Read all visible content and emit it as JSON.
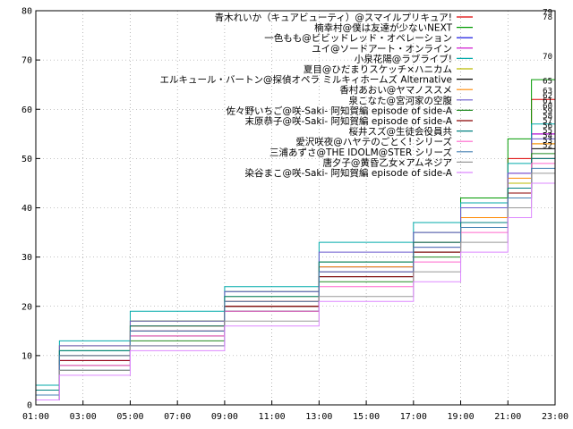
{
  "chart_data": {
    "type": "line",
    "xlim": [
      "01:00",
      "23:00"
    ],
    "ylim": [
      0,
      80
    ],
    "x_ticks": [
      "01:00",
      "03:00",
      "05:00",
      "07:00",
      "09:00",
      "11:00",
      "13:00",
      "15:00",
      "17:00",
      "19:00",
      "21:00",
      "23:00"
    ],
    "y_ticks": [
      "0",
      "10",
      "20",
      "30",
      "40",
      "50",
      "60",
      "70",
      "80"
    ],
    "grid": true,
    "legend_position": "top-right",
    "series": [
      {
        "name": "青木れいか（キュアビューティ）@スマイルプリキュア!",
        "color": "#dd0000",
        "points": [
          [
            "01:00",
            2
          ],
          [
            "02:00",
            10
          ],
          [
            "05:00",
            16
          ],
          [
            "09:00",
            20
          ],
          [
            "13:00",
            27
          ],
          [
            "17:00",
            33
          ],
          [
            "19:00",
            40
          ],
          [
            "21:00",
            50
          ],
          [
            "22:00",
            62
          ],
          [
            "23:00",
            79
          ]
        ]
      },
      {
        "name": "楠幸村@僕は友達が少ないNEXT",
        "color": "#009900",
        "points": [
          [
            "01:00",
            3
          ],
          [
            "02:00",
            11
          ],
          [
            "05:00",
            17
          ],
          [
            "09:00",
            23
          ],
          [
            "13:00",
            29
          ],
          [
            "17:00",
            35
          ],
          [
            "19:00",
            42
          ],
          [
            "21:00",
            54
          ],
          [
            "22:00",
            66
          ],
          [
            "23:00",
            78
          ]
        ]
      },
      {
        "name": "一色もも@ビビッドレッド・オペレーション",
        "color": "#0000dd",
        "points": [
          [
            "01:00",
            1
          ],
          [
            "02:00",
            7
          ],
          [
            "05:00",
            12
          ],
          [
            "09:00",
            19
          ],
          [
            "13:00",
            28
          ],
          [
            "17:00",
            33
          ],
          [
            "19:00",
            38
          ],
          [
            "21:00",
            44
          ],
          [
            "22:00",
            55
          ],
          [
            "23:00",
            70
          ]
        ]
      },
      {
        "name": "ユイ@ソードアート・オンライン",
        "color": "#cc00cc",
        "points": [
          [
            "01:00",
            2
          ],
          [
            "02:00",
            9
          ],
          [
            "05:00",
            15
          ],
          [
            "09:00",
            21
          ],
          [
            "13:00",
            27
          ],
          [
            "17:00",
            32
          ],
          [
            "19:00",
            37
          ],
          [
            "21:00",
            47
          ],
          [
            "22:00",
            55
          ],
          [
            "23:00",
            65
          ]
        ]
      },
      {
        "name": "小泉花陽@ラブライブ!",
        "color": "#00aaaa",
        "points": [
          [
            "01:00",
            4
          ],
          [
            "02:00",
            13
          ],
          [
            "05:00",
            19
          ],
          [
            "09:00",
            24
          ],
          [
            "13:00",
            33
          ],
          [
            "17:00",
            37
          ],
          [
            "19:00",
            41
          ],
          [
            "21:00",
            49
          ],
          [
            "22:00",
            57
          ],
          [
            "23:00",
            63
          ]
        ]
      },
      {
        "name": "夏目@ひだまりスケッチ×ハニカム",
        "color": "#bbbb00",
        "points": [
          [
            "01:00",
            3
          ],
          [
            "02:00",
            12
          ],
          [
            "05:00",
            17
          ],
          [
            "09:00",
            22
          ],
          [
            "13:00",
            29
          ],
          [
            "17:00",
            33
          ],
          [
            "19:00",
            37
          ],
          [
            "21:00",
            45
          ],
          [
            "22:00",
            53
          ],
          [
            "23:00",
            62
          ]
        ]
      },
      {
        "name": "エルキュール・バートン@探偵オペラ ミルキィホームズ Alternative",
        "color": "#000000",
        "points": [
          [
            "01:00",
            1
          ],
          [
            "02:00",
            8
          ],
          [
            "05:00",
            14
          ],
          [
            "09:00",
            20
          ],
          [
            "13:00",
            26
          ],
          [
            "17:00",
            31
          ],
          [
            "19:00",
            36
          ],
          [
            "21:00",
            44
          ],
          [
            "22:00",
            52
          ],
          [
            "23:00",
            61
          ]
        ]
      },
      {
        "name": "香村あおい@ヤマノススメ",
        "color": "#ff8800",
        "points": [
          [
            "01:00",
            2
          ],
          [
            "02:00",
            10
          ],
          [
            "05:00",
            16
          ],
          [
            "09:00",
            21
          ],
          [
            "13:00",
            28
          ],
          [
            "17:00",
            33
          ],
          [
            "19:00",
            38
          ],
          [
            "21:00",
            46
          ],
          [
            "22:00",
            53
          ],
          [
            "23:00",
            60
          ]
        ]
      },
      {
        "name": "泉こなた@宮河家の空腹",
        "color": "#6a5acd",
        "points": [
          [
            "01:00",
            3
          ],
          [
            "02:00",
            12
          ],
          [
            "05:00",
            17
          ],
          [
            "09:00",
            23
          ],
          [
            "13:00",
            31
          ],
          [
            "17:00",
            35
          ],
          [
            "19:00",
            40
          ],
          [
            "21:00",
            47
          ],
          [
            "22:00",
            54
          ],
          [
            "23:00",
            59
          ]
        ]
      },
      {
        "name": "佐々野いちご@咲-Saki- 阿知賀編 episode of side-A",
        "color": "#228b22",
        "points": [
          [
            "01:00",
            1
          ],
          [
            "02:00",
            7
          ],
          [
            "05:00",
            13
          ],
          [
            "09:00",
            19
          ],
          [
            "13:00",
            25
          ],
          [
            "17:00",
            30
          ],
          [
            "19:00",
            36
          ],
          [
            "21:00",
            44
          ],
          [
            "22:00",
            51
          ],
          [
            "23:00",
            58
          ]
        ]
      },
      {
        "name": "末原恭子@咲-Saki- 阿知賀編 episode of side-A",
        "color": "#8b0000",
        "points": [
          [
            "01:00",
            2
          ],
          [
            "02:00",
            9
          ],
          [
            "05:00",
            15
          ],
          [
            "09:00",
            20
          ],
          [
            "13:00",
            26
          ],
          [
            "17:00",
            31
          ],
          [
            "19:00",
            36
          ],
          [
            "21:00",
            43
          ],
          [
            "22:00",
            50
          ],
          [
            "23:00",
            57
          ]
        ]
      },
      {
        "name": "桜井スズ@生徒会役員共",
        "color": "#008080",
        "points": [
          [
            "01:00",
            3
          ],
          [
            "02:00",
            11
          ],
          [
            "05:00",
            16
          ],
          [
            "09:00",
            22
          ],
          [
            "13:00",
            29
          ],
          [
            "17:00",
            33
          ],
          [
            "19:00",
            37
          ],
          [
            "21:00",
            44
          ],
          [
            "22:00",
            50
          ],
          [
            "23:00",
            56
          ]
        ]
      },
      {
        "name": "愛沢咲夜@ハヤテのごとく! シリーズ",
        "color": "#ff66cc",
        "points": [
          [
            "01:00",
            1
          ],
          [
            "02:00",
            8
          ],
          [
            "05:00",
            14
          ],
          [
            "09:00",
            19
          ],
          [
            "13:00",
            24
          ],
          [
            "17:00",
            29
          ],
          [
            "19:00",
            35
          ],
          [
            "21:00",
            42
          ],
          [
            "22:00",
            49
          ],
          [
            "23:00",
            55
          ]
        ]
      },
      {
        "name": "三浦あずさ@THE IDOLM@STER シリーズ",
        "color": "#4682b4",
        "points": [
          [
            "01:00",
            2
          ],
          [
            "02:00",
            10
          ],
          [
            "05:00",
            15
          ],
          [
            "09:00",
            21
          ],
          [
            "13:00",
            27
          ],
          [
            "17:00",
            32
          ],
          [
            "19:00",
            36
          ],
          [
            "21:00",
            42
          ],
          [
            "22:00",
            48
          ],
          [
            "23:00",
            54
          ]
        ]
      },
      {
        "name": "唐夕子@黄昏乙女×アムネジア",
        "color": "#999999",
        "points": [
          [
            "01:00",
            1
          ],
          [
            "02:00",
            7
          ],
          [
            "05:00",
            12
          ],
          [
            "09:00",
            17
          ],
          [
            "13:00",
            22
          ],
          [
            "17:00",
            27
          ],
          [
            "19:00",
            33
          ],
          [
            "21:00",
            40
          ],
          [
            "22:00",
            47
          ],
          [
            "23:00",
            53
          ]
        ]
      },
      {
        "name": "染谷まこ@咲-Saki- 阿知賀編 episode of side-A",
        "color": "#dd88ff",
        "points": [
          [
            "01:00",
            1
          ],
          [
            "02:00",
            6
          ],
          [
            "05:00",
            11
          ],
          [
            "09:00",
            16
          ],
          [
            "13:00",
            21
          ],
          [
            "17:00",
            25
          ],
          [
            "19:00",
            31
          ],
          [
            "21:00",
            38
          ],
          [
            "22:00",
            45
          ],
          [
            "23:00",
            52
          ]
        ]
      }
    ]
  }
}
